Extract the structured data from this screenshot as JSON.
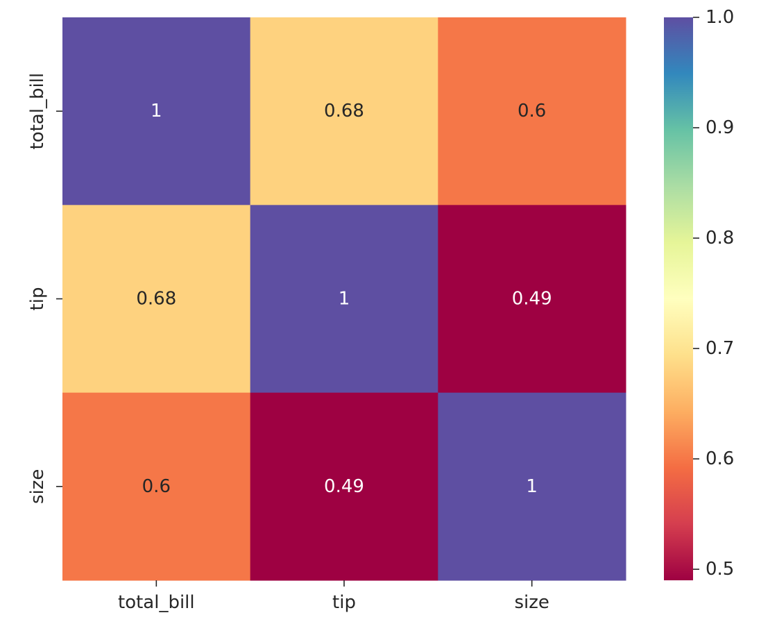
{
  "chart_data": {
    "type": "heatmap",
    "title": "",
    "xlabel": "",
    "ylabel": "",
    "x_categories": [
      "total_bill",
      "tip",
      "size"
    ],
    "y_categories": [
      "total_bill",
      "tip",
      "size"
    ],
    "values": [
      [
        1.0,
        0.68,
        0.6
      ],
      [
        0.68,
        1.0,
        0.49
      ],
      [
        0.6,
        0.49,
        1.0
      ]
    ],
    "annotations": [
      [
        "1",
        "0.68",
        "0.6"
      ],
      [
        "0.68",
        "1",
        "0.49"
      ],
      [
        "0.6",
        "0.49",
        "1"
      ]
    ],
    "colormap": "Spectral",
    "colorbar": {
      "range": [
        0.49,
        1.0
      ],
      "ticks": [
        0.5,
        0.6,
        0.7,
        0.8,
        0.9,
        1.0
      ],
      "tick_labels": [
        "0.5",
        "0.6",
        "0.7",
        "0.8",
        "0.9",
        "1.0"
      ],
      "position": "right"
    },
    "grid": false,
    "colors": {
      "text_dark": "#262626",
      "text_light": "#ffffff",
      "axis": "#262626"
    }
  }
}
